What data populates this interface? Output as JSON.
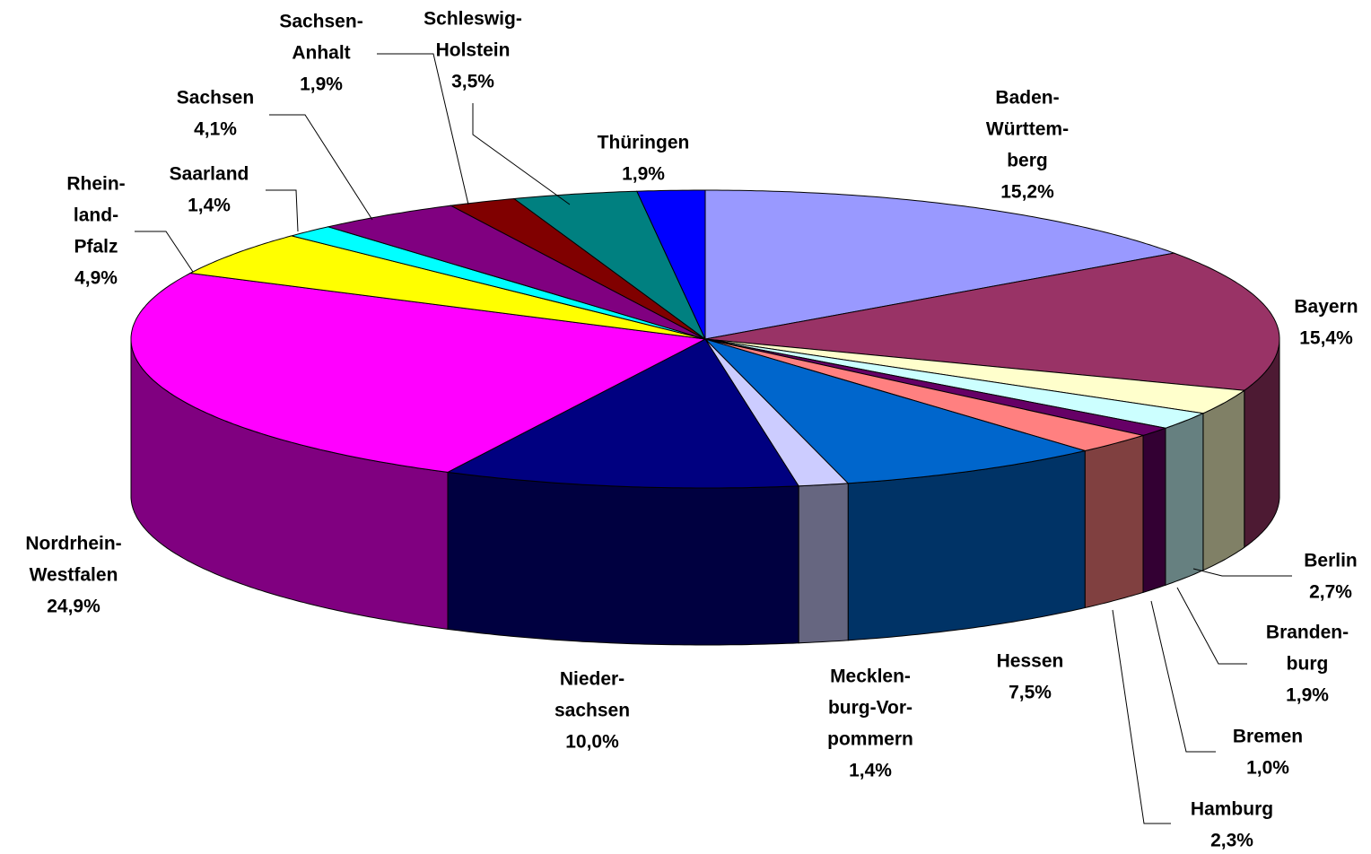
{
  "chart_data": {
    "type": "pie3d",
    "categories": [
      [
        "Baden-",
        "Württem-",
        "berg"
      ],
      [
        "Bayern"
      ],
      [
        "Berlin"
      ],
      [
        "Branden-",
        "burg"
      ],
      [
        "Bremen"
      ],
      [
        "Hamburg"
      ],
      [
        "Hessen"
      ],
      [
        "Mecklen-",
        "burg-Vor-",
        "pommern"
      ],
      [
        "Nieder-",
        "sachsen"
      ],
      [
        "Nordrhein-",
        "Westfalen"
      ],
      [
        "Rhein-",
        "land-",
        "Pfalz"
      ],
      [
        "Saarland"
      ],
      [
        "Sachsen"
      ],
      [
        "Sachsen-",
        "Anhalt"
      ],
      [
        "Schleswig-",
        "Holstein"
      ],
      [
        "Thüringen"
      ]
    ],
    "values": [
      15.2,
      15.4,
      2.7,
      1.9,
      1.0,
      2.3,
      7.5,
      1.4,
      10.0,
      24.9,
      4.9,
      1.4,
      4.1,
      1.9,
      3.5,
      1.9
    ],
    "value_labels": [
      "15,2%",
      "15,4%",
      "2,7%",
      "1,9%",
      "1,0%",
      "2,3%",
      "7,5%",
      "1,4%",
      "10,0%",
      "24,9%",
      "4,9%",
      "1,4%",
      "4,1%",
      "1,9%",
      "3,5%",
      "1,9%"
    ],
    "colors": [
      "#9999ff",
      "#993366",
      "#ffffcc",
      "#ccffff",
      "#660066",
      "#ff8080",
      "#0066cc",
      "#ccccff",
      "#000080",
      "#ff00ff",
      "#ffff00",
      "#00ffff",
      "#800080",
      "#800000",
      "#008080",
      "#0000ff"
    ]
  }
}
